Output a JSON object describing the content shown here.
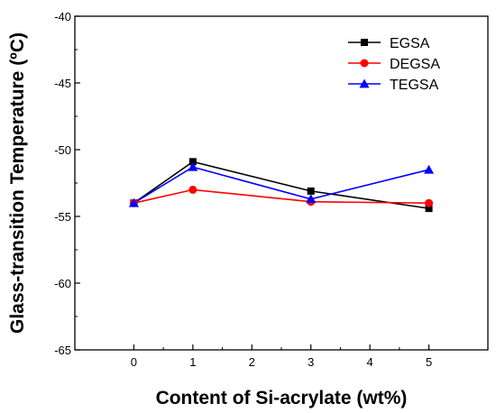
{
  "chart_data": {
    "type": "line",
    "title": "",
    "xlabel": "Content of Si-acrylate (wt%)",
    "ylabel": "Glass-transition Temperature (ºC)",
    "x": [
      0,
      1,
      3,
      5
    ],
    "xlim": [
      -1,
      6
    ],
    "ylim": [
      -65,
      -40
    ],
    "xticks": [
      0,
      1,
      2,
      3,
      4,
      5
    ],
    "xtick_labels": [
      "0",
      "1",
      "2",
      "3",
      "4",
      "5"
    ],
    "yticks": [
      -65,
      -60,
      -55,
      -50,
      -45,
      -40
    ],
    "ytick_labels": [
      "-65",
      "-60",
      "-55",
      "-50",
      "-45",
      "-40"
    ],
    "grid": false,
    "legend_position": "top-right",
    "series": [
      {
        "name": "EGSA",
        "values": [
          -54.0,
          -50.9,
          -53.1,
          -54.4
        ],
        "color": "#000000",
        "marker": "square"
      },
      {
        "name": "DEGSA",
        "values": [
          -54.0,
          -53.0,
          -53.9,
          -54.0
        ],
        "color": "#ff0000",
        "marker": "circle"
      },
      {
        "name": "TEGSA",
        "values": [
          -54.0,
          -51.3,
          -53.7,
          -51.5
        ],
        "color": "#0000ff",
        "marker": "triangle"
      }
    ]
  }
}
